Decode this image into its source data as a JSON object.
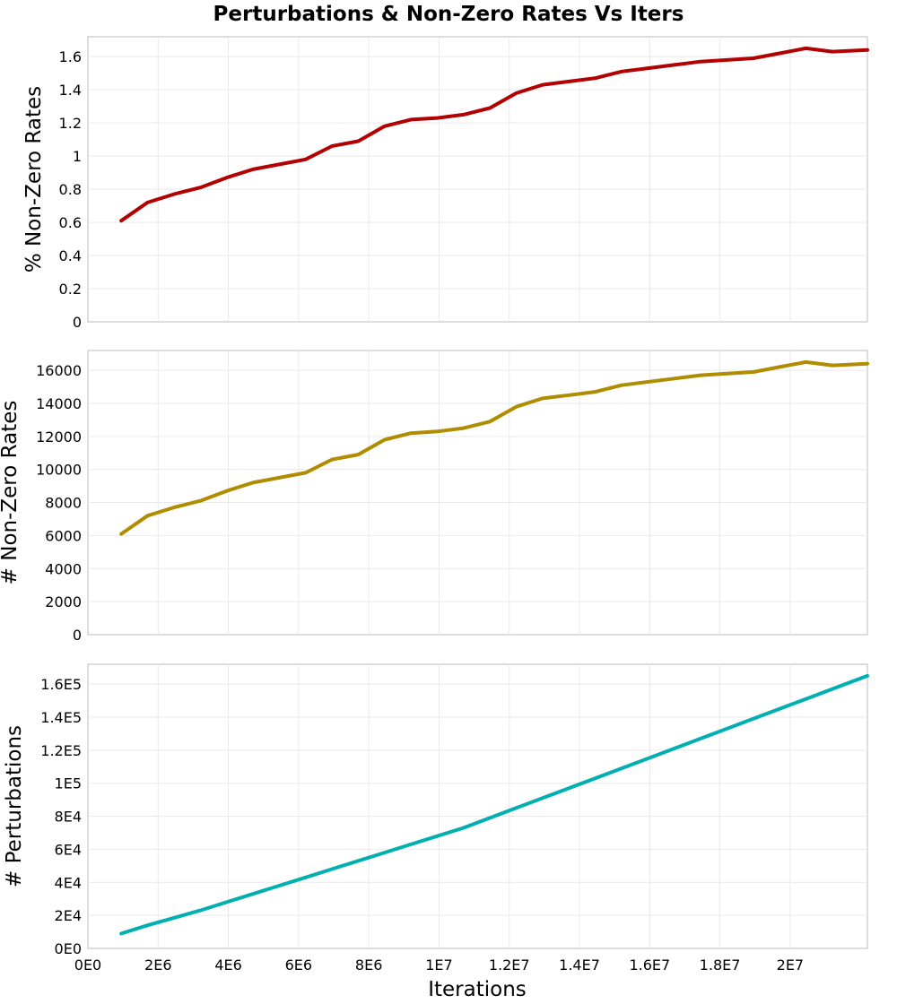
{
  "figure": {
    "title": "Perturbations & Non-Zero Rates Vs Iters",
    "xlabel": "Iterations"
  },
  "chart_data": [
    {
      "type": "line",
      "title": "",
      "ylabel": "% Non-Zero Rates",
      "xlabel": "",
      "xlim": [
        0,
        22200000
      ],
      "ylim": [
        0,
        1.72
      ],
      "x_grid": [
        2000000,
        4000000,
        6000000,
        8000000,
        10000000,
        12000000,
        14000000,
        16000000,
        18000000,
        20000000
      ],
      "y_ticks": [
        0,
        0.2,
        0.4,
        0.6,
        0.8,
        1,
        1.2,
        1.4,
        1.6
      ],
      "y_tick_labels": [
        "0",
        "0.2",
        "0.4",
        "0.6",
        "0.8",
        "1",
        "1.2",
        "1.4",
        "1.6"
      ],
      "grid": true,
      "color": "#b30000",
      "x": [
        950000,
        1700000,
        2450000,
        3200000,
        3950000,
        4700000,
        5450000,
        6200000,
        6950000,
        7700000,
        8450000,
        9200000,
        9950000,
        10700000,
        11450000,
        12200000,
        12950000,
        13700000,
        14450000,
        15200000,
        15950000,
        16700000,
        17450000,
        18200000,
        18950000,
        19700000,
        20450000,
        21200000,
        22200000
      ],
      "values": [
        0.61,
        0.72,
        0.77,
        0.81,
        0.87,
        0.92,
        0.95,
        0.98,
        1.06,
        1.09,
        1.18,
        1.22,
        1.23,
        1.25,
        1.29,
        1.38,
        1.43,
        1.45,
        1.47,
        1.51,
        1.53,
        1.55,
        1.57,
        1.58,
        1.59,
        1.62,
        1.65,
        1.63,
        1.64
      ]
    },
    {
      "type": "line",
      "title": "",
      "ylabel": "# Non-Zero Rates",
      "xlabel": "",
      "xlim": [
        0,
        22200000
      ],
      "ylim": [
        0,
        17200
      ],
      "x_grid": [
        2000000,
        4000000,
        6000000,
        8000000,
        10000000,
        12000000,
        14000000,
        16000000,
        18000000,
        20000000
      ],
      "y_ticks": [
        0,
        2000,
        4000,
        6000,
        8000,
        10000,
        12000,
        14000,
        16000
      ],
      "y_tick_labels": [
        "0",
        "2000",
        "4000",
        "6000",
        "8000",
        "10000",
        "12000",
        "14000",
        "16000"
      ],
      "grid": true,
      "color": "#b08c00",
      "x": [
        950000,
        1700000,
        2450000,
        3200000,
        3950000,
        4700000,
        5450000,
        6200000,
        6950000,
        7700000,
        8450000,
        9200000,
        9950000,
        10700000,
        11450000,
        12200000,
        12950000,
        13700000,
        14450000,
        15200000,
        15950000,
        16700000,
        17450000,
        18200000,
        18950000,
        19700000,
        20450000,
        21200000,
        22200000
      ],
      "values": [
        6100,
        7200,
        7700,
        8100,
        8700,
        9200,
        9500,
        9800,
        10600,
        10900,
        11800,
        12200,
        12300,
        12500,
        12900,
        13800,
        14300,
        14500,
        14700,
        15100,
        15300,
        15500,
        15700,
        15800,
        15900,
        16200,
        16500,
        16300,
        16400
      ]
    },
    {
      "type": "line",
      "title": "",
      "ylabel": "# Perturbations",
      "xlabel": "Iterations",
      "xlim": [
        0,
        22200000
      ],
      "ylim": [
        0,
        172000
      ],
      "x_ticks": [
        0,
        2000000,
        4000000,
        6000000,
        8000000,
        10000000,
        12000000,
        14000000,
        16000000,
        18000000,
        20000000
      ],
      "x_tick_labels": [
        "0E0",
        "2E6",
        "4E6",
        "6E6",
        "8E6",
        "1E7",
        "1.2E7",
        "1.4E7",
        "1.6E7",
        "1.8E7",
        "2E7"
      ],
      "y_ticks": [
        0,
        20000,
        40000,
        60000,
        80000,
        100000,
        120000,
        140000,
        160000
      ],
      "y_tick_labels": [
        "0E0",
        "2E4",
        "4E4",
        "6E4",
        "8E4",
        "1E5",
        "1.2E5",
        "1.4E5",
        "1.6E5"
      ],
      "grid": true,
      "color": "#00b0b0",
      "x": [
        950000,
        1700000,
        2450000,
        3200000,
        3950000,
        4700000,
        5450000,
        6200000,
        6950000,
        7700000,
        8450000,
        9200000,
        9950000,
        10700000,
        11450000,
        12200000,
        12950000,
        13700000,
        14450000,
        15200000,
        15950000,
        16700000,
        17450000,
        18200000,
        18950000,
        19700000,
        20450000,
        21200000,
        22200000
      ],
      "values": [
        9000,
        14000,
        18500,
        23000,
        28000,
        33000,
        38000,
        43000,
        48000,
        53000,
        58000,
        63000,
        68000,
        73000,
        79000,
        85000,
        91000,
        97000,
        103000,
        109000,
        115000,
        121000,
        127000,
        133000,
        139000,
        145000,
        151000,
        157000,
        165000
      ]
    }
  ]
}
